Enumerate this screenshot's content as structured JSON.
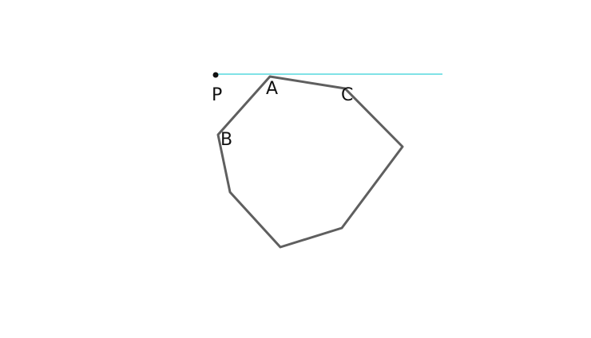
{
  "diagram": {
    "labels": {
      "p": "P",
      "a": "A",
      "b": "B",
      "c": "C"
    },
    "colors": {
      "polygon_stroke": "#5f5f5f",
      "line_stroke": "#35d0d6",
      "point_fill": "#111111",
      "label_fill": "#111111"
    }
  }
}
